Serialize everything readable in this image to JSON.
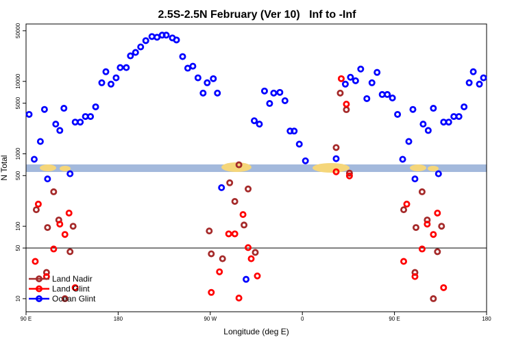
{
  "chart_data": {
    "type": "scatter",
    "title": "2.5S-2.5N February (Ver 10)   Inf to -Inf",
    "x_label": "Longitude (deg E)",
    "y_label": "N Total",
    "log_y": true,
    "xlim": [
      90,
      540
    ],
    "ylim": [
      6.6,
      62000
    ],
    "xticks": [
      {
        "value": 90,
        "label": "90 E"
      },
      180,
      {
        "value": 270,
        "label": "90 W"
      },
      {
        "value": 360,
        "label": "0"
      },
      {
        "value": 450,
        "label": "90 E"
      },
      {
        "value": 540,
        "label": "180"
      }
    ],
    "yticks": [
      10,
      50,
      100,
      500,
      1000,
      5000,
      10000,
      50000
    ],
    "hline": 50,
    "legend": "lower-left",
    "series": [
      {
        "name": "Land Nadir",
        "color": "#a52a2a",
        "x": [
          100,
          110,
          111,
          117,
          122,
          128,
          136,
          133,
          269,
          271,
          282,
          289,
          294,
          298,
          303,
          307,
          314,
          393,
          397,
          403,
          406,
          459,
          470,
          471,
          477,
          482,
          488,
          496,
          492
        ],
        "values": [
          169,
          23,
          96,
          299,
          122,
          10,
          100,
          44.5,
          86,
          41.6,
          35.6,
          398,
          220,
          705,
          104,
          327,
          43.5,
          1220,
          6890,
          4070,
          541,
          169,
          23,
          96,
          299,
          122,
          10,
          100,
          44.5
        ]
      },
      {
        "name": "Land Glint",
        "color": "#ff0000",
        "x": [
          99,
          102,
          110,
          117,
          123,
          128,
          132,
          138,
          271,
          279,
          288,
          294,
          298,
          302,
          307,
          310,
          316,
          393,
          398,
          403,
          406,
          459,
          462,
          470,
          477,
          482,
          488,
          492,
          498
        ],
        "values": [
          32.7,
          202,
          20.2,
          48.5,
          107,
          77,
          152,
          14.2,
          12.2,
          23.5,
          78.5,
          78.5,
          10.2,
          145,
          50.7,
          35.6,
          20.6,
          565,
          10900,
          4850,
          495,
          32.7,
          202,
          20.2,
          48.5,
          107,
          77,
          152,
          14.2
        ]
      },
      {
        "name": "Ocean Glint",
        "color": "#0000ff",
        "x": [
          93,
          98,
          104,
          108,
          111,
          119,
          123,
          127,
          133,
          138,
          143,
          148,
          153,
          158,
          164,
          168,
          173,
          178,
          182,
          188,
          192,
          197,
          202,
          207,
          213,
          218,
          223,
          227,
          233,
          237,
          243,
          248,
          253,
          258,
          263,
          267,
          273,
          277,
          281,
          305,
          313,
          318,
          323,
          328,
          332,
          338,
          343,
          348,
          352,
          357,
          363,
          393,
          402,
          407,
          412,
          417,
          423,
          428,
          433,
          438,
          443,
          448,
          453,
          458,
          464,
          468,
          470,
          478,
          483,
          488,
          493,
          498,
          503,
          508,
          513,
          518,
          523,
          527,
          533,
          537
        ],
        "values": [
          3500,
          840,
          1480,
          4100,
          450,
          2570,
          2100,
          4250,
          530,
          2740,
          2740,
          3270,
          3270,
          4450,
          9570,
          13600,
          9160,
          11200,
          15500,
          15500,
          22500,
          25100,
          29900,
          36500,
          41600,
          40700,
          43500,
          43500,
          39800,
          37300,
          22000,
          15200,
          16200,
          11200,
          6890,
          9570,
          10900,
          6890,
          341,
          18.5,
          2860,
          2570,
          7360,
          4950,
          6890,
          7050,
          5410,
          2060,
          2060,
          1360,
          800,
          857,
          9160,
          11400,
          10200,
          14800,
          5780,
          9570,
          13300,
          6590,
          6590,
          5900,
          3500,
          840,
          1480,
          4100,
          450,
          2570,
          2100,
          4250,
          530,
          2740,
          2740,
          3270,
          3270,
          4450,
          9570,
          13600,
          9160,
          11200
        ]
      }
    ]
  }
}
